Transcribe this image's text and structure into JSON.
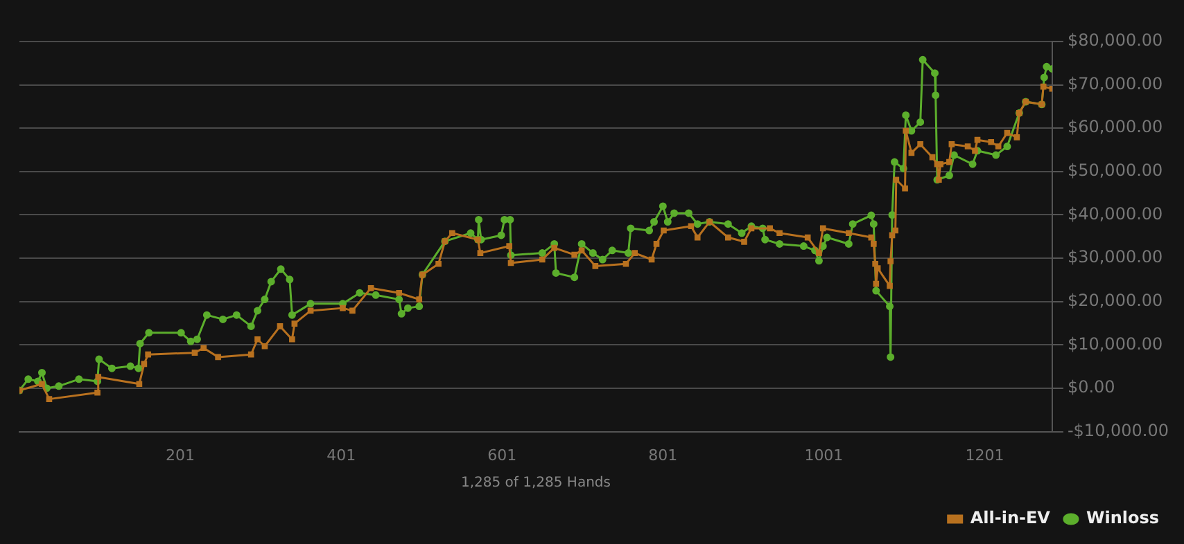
{
  "chart_data": {
    "type": "line",
    "xlabel": "1,285 of 1,285 Hands",
    "xlim": [
      1,
      1285
    ],
    "xticks": [
      201,
      401,
      601,
      801,
      1001,
      1201
    ],
    "ylim": [
      -10000,
      80000
    ],
    "yticks": [
      {
        "value": -10000,
        "label": "-$10,000.00"
      },
      {
        "value": 0,
        "label": "$0.00"
      },
      {
        "value": 10000,
        "label": "$10,000.00"
      },
      {
        "value": 20000,
        "label": "$20,000.00"
      },
      {
        "value": 30000,
        "label": "$30,000.00"
      },
      {
        "value": 40000,
        "label": "$40,000.00"
      },
      {
        "value": 50000,
        "label": "$50,000.00"
      },
      {
        "value": 60000,
        "label": "$60,000.00"
      },
      {
        "value": 70000,
        "label": "$70,000.00"
      },
      {
        "value": 80000,
        "label": "$80,000.00"
      }
    ],
    "grid": "y",
    "legend": "bottom right",
    "line_style": "solid",
    "series": [
      {
        "name": "All-in-EV",
        "color": "#b8711f",
        "marker": "square",
        "x": [
          1,
          29,
          38,
          98,
          99,
          150,
          156,
          161,
          219,
          230,
          248,
          289,
          297,
          306,
          325,
          340,
          343,
          363,
          403,
          415,
          438,
          473,
          498,
          502,
          522,
          530,
          539,
          571,
          574,
          610,
          612,
          651,
          666,
          691,
          700,
          717,
          755,
          766,
          787,
          793,
          802,
          836,
          844,
          859,
          882,
          902,
          911,
          934,
          946,
          981,
          995,
          1000,
          1032,
          1060,
          1063,
          1065,
          1066,
          1068,
          1083,
          1084,
          1086,
          1090,
          1091,
          1102,
          1103,
          1110,
          1121,
          1136,
          1142,
          1144,
          1146,
          1157,
          1160,
          1180,
          1189,
          1192,
          1209,
          1218,
          1229,
          1241,
          1244,
          1252,
          1272,
          1274,
          1285
        ],
        "values": [
          -500,
          1000,
          -2500,
          -1000,
          2600,
          1000,
          5600,
          7800,
          8200,
          9300,
          7200,
          7800,
          11300,
          9700,
          14300,
          11300,
          14900,
          17900,
          18500,
          17900,
          23100,
          22000,
          20500,
          26200,
          28700,
          33900,
          35800,
          34300,
          31200,
          32800,
          28900,
          29700,
          32400,
          30800,
          31800,
          28200,
          28700,
          31200,
          29700,
          33300,
          36400,
          37400,
          34800,
          38400,
          34800,
          33800,
          36900,
          36900,
          35800,
          34800,
          31200,
          36900,
          35800,
          34800,
          33300,
          28700,
          24100,
          27700,
          23600,
          29300,
          35300,
          36400,
          48100,
          46100,
          59400,
          54300,
          56300,
          53300,
          51700,
          48100,
          51700,
          52200,
          56300,
          55800,
          54800,
          57300,
          56800,
          55800,
          58900,
          57900,
          63500,
          66100,
          65500,
          69600,
          69100
        ]
      },
      {
        "name": "Winloss",
        "color": "#5cae2c",
        "marker": "circle",
        "x": [
          1,
          12,
          24,
          29,
          35,
          50,
          75,
          98,
          100,
          116,
          139,
          149,
          151,
          162,
          202,
          214,
          222,
          234,
          254,
          271,
          289,
          297,
          306,
          314,
          326,
          337,
          340,
          363,
          403,
          424,
          444,
          473,
          476,
          484,
          498,
          502,
          530,
          562,
          571,
          572,
          575,
          600,
          604,
          611,
          612,
          651,
          666,
          668,
          691,
          700,
          714,
          726,
          738,
          758,
          761,
          784,
          790,
          801,
          807,
          815,
          833,
          844,
          859,
          882,
          899,
          911,
          925,
          928,
          946,
          976,
          990,
          995,
          1000,
          1005,
          1032,
          1037,
          1060,
          1063,
          1066,
          1083,
          1084,
          1086,
          1089,
          1100,
          1103,
          1110,
          1121,
          1124,
          1139,
          1140,
          1142,
          1157,
          1163,
          1186,
          1192,
          1215,
          1229,
          1244,
          1252,
          1272,
          1275,
          1278,
          1285
        ],
        "values": [
          -500,
          2100,
          1600,
          3600,
          0,
          500,
          2100,
          1600,
          6700,
          4600,
          5100,
          4600,
          10300,
          12800,
          12800,
          10800,
          11300,
          16900,
          15900,
          16900,
          14300,
          17900,
          20500,
          24600,
          27500,
          25100,
          16900,
          19500,
          19500,
          22000,
          21500,
          20500,
          17200,
          18500,
          18900,
          26200,
          33900,
          35800,
          34300,
          38900,
          34300,
          35300,
          38900,
          38900,
          30700,
          31200,
          33300,
          26600,
          25600,
          33300,
          31200,
          29700,
          31800,
          31200,
          36900,
          36400,
          38400,
          42000,
          38400,
          40400,
          40400,
          37900,
          38400,
          37900,
          35800,
          37400,
          36900,
          34300,
          33300,
          32800,
          31800,
          29400,
          32800,
          34800,
          33300,
          37900,
          39900,
          37900,
          22500,
          18900,
          7200,
          40000,
          52200,
          50700,
          63000,
          59400,
          61400,
          75800,
          72700,
          67600,
          48100,
          49100,
          53800,
          51700,
          54800,
          53800,
          55800,
          63500,
          66100,
          65500,
          71700,
          74200,
          73700
        ]
      }
    ]
  }
}
